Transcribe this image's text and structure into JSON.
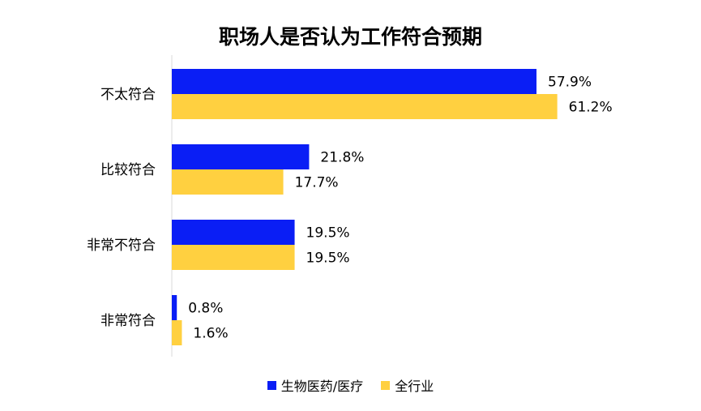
{
  "chart_data": {
    "type": "bar",
    "orientation": "horizontal",
    "title": "职场人是否认为工作符合预期",
    "categories": [
      "不太符合",
      "比较符合",
      "非常不符合",
      "非常符合"
    ],
    "series": [
      {
        "name": "生物医药/医疗",
        "values": [
          57.9,
          21.8,
          19.5,
          0.8
        ],
        "labels": [
          "57.9%",
          "21.8%",
          "19.5%",
          "0.8%"
        ],
        "color": "#0A1EF5"
      },
      {
        "name": "全行业",
        "values": [
          61.2,
          17.7,
          19.5,
          1.6
        ],
        "labels": [
          "61.2%",
          "17.7%",
          "19.5%",
          "1.6%"
        ],
        "color": "#FFD040"
      }
    ],
    "xlabel": "",
    "ylabel": "",
    "xlim": [
      0,
      62
    ],
    "grid": false,
    "legend_position": "bottom"
  }
}
